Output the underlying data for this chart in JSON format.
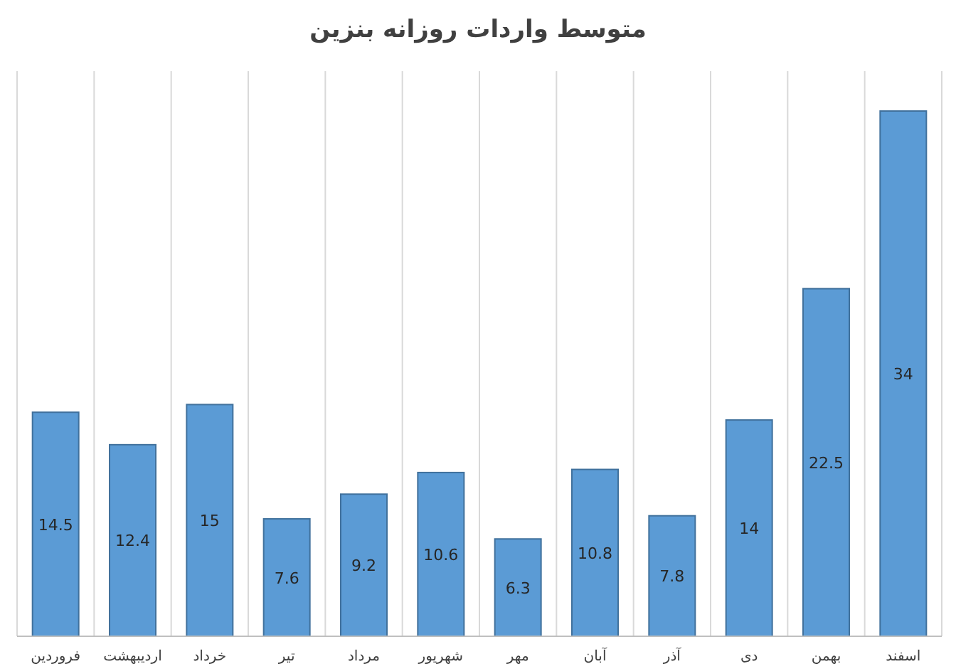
{
  "chart_data": {
    "type": "bar",
    "title": "متوسط واردات روزانه بنزین",
    "categories": [
      "فروردین",
      "اردیبهشت",
      "خرداد",
      "تیر",
      "مرداد",
      "شهریور",
      "مهر",
      "آبان",
      "آذر",
      "دی",
      "بهمن",
      "اسفند"
    ],
    "values": [
      14.5,
      12.4,
      15,
      7.6,
      9.2,
      10.6,
      6.3,
      10.8,
      7.8,
      14,
      22.5,
      34
    ],
    "color": "#5b9bd5",
    "data_labels": true,
    "grid": true
  }
}
